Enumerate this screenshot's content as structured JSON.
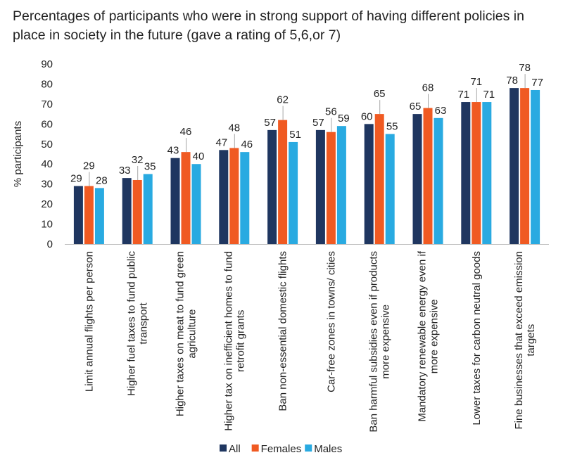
{
  "chart_data": {
    "type": "bar",
    "title": "Percentages of participants who were in strong support of having different policies in place in society in the future (gave a rating of 5,6,or 7)",
    "ylabel": "% participants",
    "xlabel": "",
    "ylim": [
      0,
      90
    ],
    "yticks": [
      0,
      10,
      20,
      30,
      40,
      50,
      60,
      70,
      80,
      90
    ],
    "grid": false,
    "legend_position": "bottom",
    "categories": [
      "Limit annual flights per person",
      "Higher fuel taxes to fund public transport",
      "Higher taxes on meat to fund green agriculture",
      "Higher tax on inefficient homes to fund retrofit grants",
      "Ban non-essential domestic flights",
      "Car-free zones in towns/ cities",
      "Ban harmful subsidies even if products more expensive",
      "Mandatory renewable energy even if more expensive",
      "Lower taxes for carbon neutral goods",
      "Fine businesses that exceed emission targets"
    ],
    "series": [
      {
        "name": "All",
        "color": "#1f3660",
        "values": [
          29,
          33,
          43,
          47,
          57,
          57,
          60,
          65,
          71,
          78
        ]
      },
      {
        "name": "Females",
        "color": "#f05a22",
        "values": [
          29,
          32,
          46,
          48,
          62,
          56,
          65,
          68,
          71,
          78
        ]
      },
      {
        "name": "Males",
        "color": "#29aae1",
        "values": [
          28,
          35,
          40,
          46,
          51,
          59,
          55,
          63,
          71,
          77
        ]
      }
    ]
  }
}
